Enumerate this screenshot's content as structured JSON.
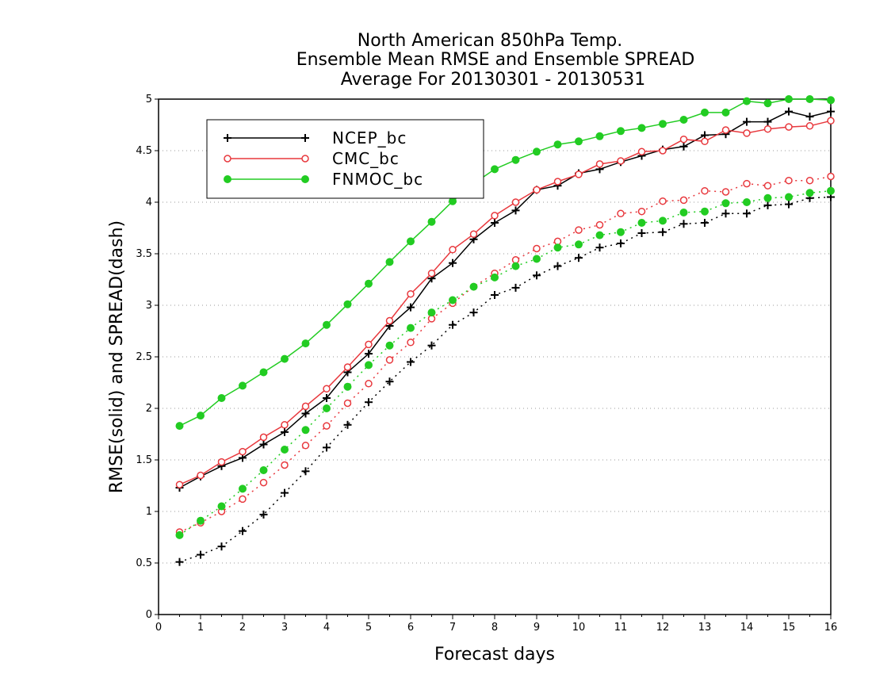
{
  "chart_data": {
    "type": "line",
    "title": [
      "North American 850hPa Temp.",
      "Ensemble Mean RMSE and Ensemble SPREAD",
      "Average For 20130301 - 20130531"
    ],
    "xlabel": "Forecast days",
    "ylabel": "RMSE(solid) and SPREAD(dash)",
    "xlim": [
      0,
      16
    ],
    "ylim": [
      0,
      5
    ],
    "xticks": [
      0,
      1,
      2,
      3,
      4,
      5,
      6,
      7,
      8,
      9,
      10,
      11,
      12,
      13,
      14,
      15,
      16
    ],
    "yticks": [
      0,
      0.5,
      1,
      1.5,
      2,
      2.5,
      3,
      3.5,
      4,
      4.5,
      5
    ],
    "ytick_labels": [
      "0",
      "0.5",
      "1",
      "1.5",
      "2",
      "2.5",
      "3",
      "3.5",
      "4",
      "4.5",
      "5"
    ],
    "grid": "horizontal dotted",
    "legend_position": "top-left",
    "x": [
      0.5,
      1,
      1.5,
      2,
      2.5,
      3,
      3.5,
      4,
      4.5,
      5,
      5.5,
      6,
      6.5,
      7,
      7.5,
      8,
      8.5,
      9,
      9.5,
      10,
      10.5,
      11,
      11.5,
      12,
      12.5,
      13,
      13.5,
      14,
      14.5,
      15,
      15.5,
      16
    ],
    "series": [
      {
        "name": "NCEP_bc",
        "color": "#000000",
        "marker": "plus",
        "rmse": [
          1.23,
          1.34,
          1.44,
          1.52,
          1.65,
          1.77,
          1.95,
          2.1,
          2.35,
          2.53,
          2.8,
          2.98,
          3.26,
          3.41,
          3.64,
          3.8,
          3.92,
          4.12,
          4.16,
          4.28,
          4.32,
          4.39,
          4.45,
          4.51,
          4.54,
          4.65,
          4.66,
          4.78,
          4.78,
          4.88,
          4.83,
          4.88
        ],
        "spread": [
          0.51,
          0.58,
          0.66,
          0.81,
          0.97,
          1.18,
          1.39,
          1.62,
          1.84,
          2.06,
          2.26,
          2.45,
          2.61,
          2.81,
          2.93,
          3.1,
          3.17,
          3.29,
          3.38,
          3.46,
          3.56,
          3.6,
          3.7,
          3.71,
          3.79,
          3.8,
          3.89,
          3.89,
          3.97,
          3.98,
          4.04,
          4.05
        ]
      },
      {
        "name": "CMC_bc",
        "color": "#e8383d",
        "marker": "circle-open",
        "rmse": [
          1.26,
          1.35,
          1.48,
          1.58,
          1.72,
          1.84,
          2.02,
          2.19,
          2.4,
          2.62,
          2.85,
          3.11,
          3.31,
          3.54,
          3.69,
          3.87,
          4.0,
          4.12,
          4.2,
          4.27,
          4.37,
          4.4,
          4.49,
          4.5,
          4.61,
          4.59,
          4.7,
          4.67,
          4.71,
          4.73,
          4.74,
          4.79
        ],
        "spread": [
          0.8,
          0.89,
          1.0,
          1.12,
          1.28,
          1.45,
          1.64,
          1.83,
          2.05,
          2.24,
          2.47,
          2.64,
          2.87,
          3.02,
          3.18,
          3.31,
          3.44,
          3.55,
          3.62,
          3.73,
          3.78,
          3.89,
          3.91,
          4.01,
          4.02,
          4.11,
          4.1,
          4.18,
          4.16,
          4.21,
          4.21,
          4.25
        ]
      },
      {
        "name": "FNMOC_bc",
        "color": "#22cc22",
        "marker": "circle-filled",
        "rmse": [
          1.83,
          1.93,
          2.1,
          2.22,
          2.35,
          2.48,
          2.63,
          2.81,
          3.01,
          3.21,
          3.42,
          3.62,
          3.81,
          4.01,
          4.18,
          4.32,
          4.41,
          4.49,
          4.56,
          4.59,
          4.64,
          4.69,
          4.72,
          4.76,
          4.8,
          4.87,
          4.87,
          4.98,
          4.96,
          5.0,
          5.0,
          4.99
        ],
        "spread": [
          0.77,
          0.91,
          1.05,
          1.22,
          1.4,
          1.6,
          1.79,
          2.0,
          2.21,
          2.42,
          2.61,
          2.78,
          2.93,
          3.05,
          3.18,
          3.27,
          3.38,
          3.45,
          3.56,
          3.59,
          3.68,
          3.71,
          3.8,
          3.82,
          3.9,
          3.91,
          3.99,
          4.0,
          4.04,
          4.05,
          4.09,
          4.11
        ]
      }
    ]
  }
}
